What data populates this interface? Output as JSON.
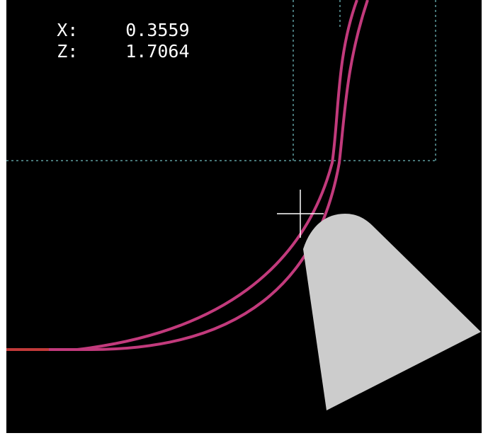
{
  "readout": {
    "x_label": "X:",
    "x_value": "0.3559",
    "z_label": "Z:",
    "z_value": "1.7064"
  },
  "colors": {
    "background": "#000000",
    "toolpath_feed": "#c23a7c",
    "toolpath_traverse": "#c23a3a",
    "extents_box": "#5f9ea0",
    "tool_shape": "#cccccc",
    "crosshair": "#ffffff"
  },
  "icons": {
    "tool": "lathe-tool-insert-icon",
    "crosshair": "cursor-crosshair-icon"
  }
}
